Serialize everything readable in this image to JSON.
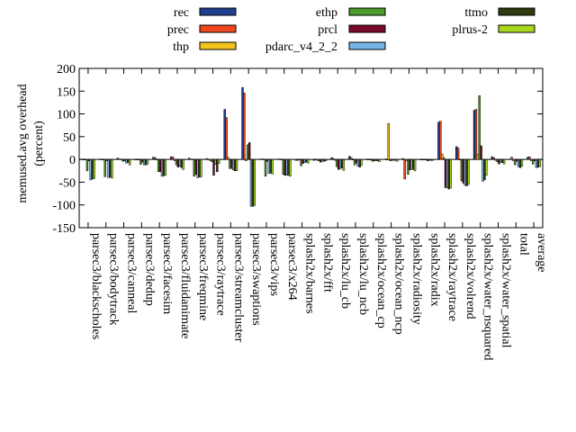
{
  "chart_data": {
    "type": "bar",
    "ylabel_lines": [
      "memused.avg overhead",
      "(percent)"
    ],
    "ylim": [
      -150,
      200
    ],
    "yticks": [
      -150,
      -100,
      -50,
      0,
      50,
      100,
      150,
      200
    ],
    "grid": false,
    "legend_position": "top",
    "categories": [
      "parsec3/blackscholes",
      "parsec3/bodytrack",
      "parsec3/canneal",
      "parsec3/dedup",
      "parsec3/facesim",
      "parsec3/fluidanimate",
      "parsec3/freqmine",
      "parsec3/raytrace",
      "parsec3/streamcluster",
      "parsec3/swaptions",
      "parsec3/vips",
      "parsec3/x264",
      "splash2x/barnes",
      "splash2x/fft",
      "splash2x/lu_cb",
      "splash2x/lu_ncb",
      "splash2x/ocean_cp",
      "splash2x/ocean_ncp",
      "splash2x/radiosity",
      "splash2x/radix",
      "splash2x/raytrace",
      "splash2x/volrend",
      "splash2x/water_nsquared",
      "splash2x/water_spatial",
      "total",
      "average"
    ],
    "series": [
      {
        "name": "rec",
        "color": "#1f3f8f",
        "values": [
          1,
          1,
          3,
          0,
          5,
          6,
          3,
          2,
          110,
          158,
          1,
          1,
          -2,
          -2,
          4,
          7,
          -1,
          1,
          2,
          -1,
          82,
          28,
          108,
          6,
          1,
          5
        ]
      },
      {
        "name": "prec",
        "color": "#f0471f",
        "values": [
          0,
          -1,
          1,
          0,
          4,
          5,
          1,
          1,
          92,
          146,
          1,
          1,
          -2,
          -1,
          2,
          4,
          -1,
          -1,
          -43,
          -1,
          84,
          25,
          110,
          4,
          5,
          6
        ]
      },
      {
        "name": "thp",
        "color": "#f2c318",
        "values": [
          0,
          -1,
          1,
          0,
          -1,
          -3,
          1,
          -3,
          5,
          -3,
          0,
          0,
          -1,
          -2,
          -2,
          -1,
          -1,
          79,
          -3,
          -1,
          12,
          -1,
          11,
          -2,
          -3,
          -3
        ]
      },
      {
        "name": "ethp",
        "color": "#4c9a2a",
        "values": [
          -25,
          -38,
          -4,
          -11,
          -27,
          -12,
          -37,
          -5,
          -20,
          32,
          -37,
          -33,
          -14,
          -3,
          -16,
          -12,
          -4,
          -3,
          -33,
          -1,
          4,
          -47,
          140,
          -5,
          -12,
          -10
        ]
      },
      {
        "name": "prcl",
        "color": "#7a0b2a",
        "values": [
          -3,
          -3,
          -3,
          -6,
          -27,
          -17,
          -33,
          -35,
          -20,
          37,
          -4,
          -35,
          -9,
          -6,
          -22,
          -8,
          -3,
          -2,
          -23,
          -3,
          -62,
          -52,
          30,
          -10,
          -4,
          -3
        ]
      },
      {
        "name": "pdarc_v4_2_2",
        "color": "#78b4e6",
        "values": [
          -45,
          -40,
          -8,
          -12,
          -37,
          -15,
          -40,
          -11,
          -23,
          -103,
          -31,
          -35,
          -7,
          -4,
          -20,
          -15,
          -3,
          -2,
          -22,
          -2,
          -62,
          -57,
          -48,
          -7,
          -16,
          -18
        ]
      },
      {
        "name": "ttmo",
        "color": "#2e3a10",
        "values": [
          -43,
          -39,
          -7,
          -12,
          -36,
          -18,
          -39,
          -27,
          -25,
          -103,
          -30,
          -35,
          -6,
          -4,
          -19,
          -17,
          -3,
          -2,
          -22,
          -2,
          -65,
          -58,
          -45,
          -7,
          -18,
          -17
        ]
      },
      {
        "name": "plrus-2",
        "color": "#a8d81c",
        "values": [
          -42,
          -41,
          -12,
          -10,
          -35,
          -22,
          -38,
          -9,
          -25,
          -101,
          -32,
          -37,
          -8,
          -3,
          -24,
          -13,
          -5,
          -4,
          -25,
          -2,
          -63,
          -55,
          -35,
          -10,
          -15,
          -16
        ]
      }
    ]
  }
}
